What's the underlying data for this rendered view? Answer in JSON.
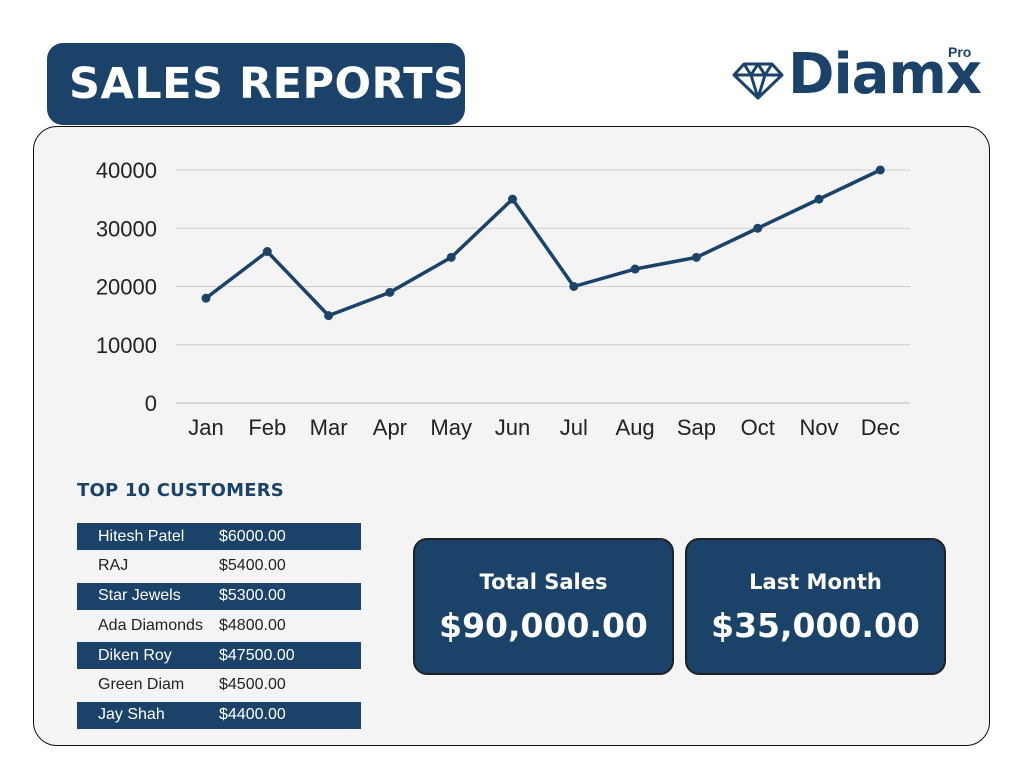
{
  "header": {
    "title": "SALES REPORTS"
  },
  "logo": {
    "brand": "Diamx",
    "badge": "Pro",
    "icon": "diamond-icon"
  },
  "chart_data": {
    "type": "line",
    "categories": [
      "Jan",
      "Feb",
      "Mar",
      "Apr",
      "May",
      "Jun",
      "Jul",
      "Aug",
      "Sap",
      "Oct",
      "Nov",
      "Dec"
    ],
    "values": [
      18000,
      26000,
      15000,
      19000,
      25000,
      35000,
      20000,
      23000,
      25000,
      30000,
      35000,
      40000
    ],
    "yticks": [
      0,
      10000,
      20000,
      30000,
      40000
    ],
    "ylim": [
      0,
      40000
    ],
    "grid": true,
    "color": "#1b4369"
  },
  "customers": {
    "title": "TOP 10  CUSTOMERS",
    "rows": [
      {
        "name": "Hitesh Patel",
        "amount": "$6000.00"
      },
      {
        "name": "RAJ",
        "amount": "$5400.00"
      },
      {
        "name": "Star Jewels",
        "amount": "$5300.00"
      },
      {
        "name": "Ada Diamonds",
        "amount": "$4800.00"
      },
      {
        "name": "Diken Roy",
        "amount": "$47500.00"
      },
      {
        "name": "Green Diam",
        "amount": "$4500.00"
      },
      {
        "name": "Jay Shah",
        "amount": "$4400.00"
      }
    ]
  },
  "stats": {
    "total_sales": {
      "label": "Total Sales",
      "value": "$90,000.00"
    },
    "last_month": {
      "label": "Last Month",
      "value": "$35,000.00"
    }
  },
  "colors": {
    "primary": "#1b4369",
    "panel": "#f4f4f4",
    "grid": "#cfcfcf"
  }
}
